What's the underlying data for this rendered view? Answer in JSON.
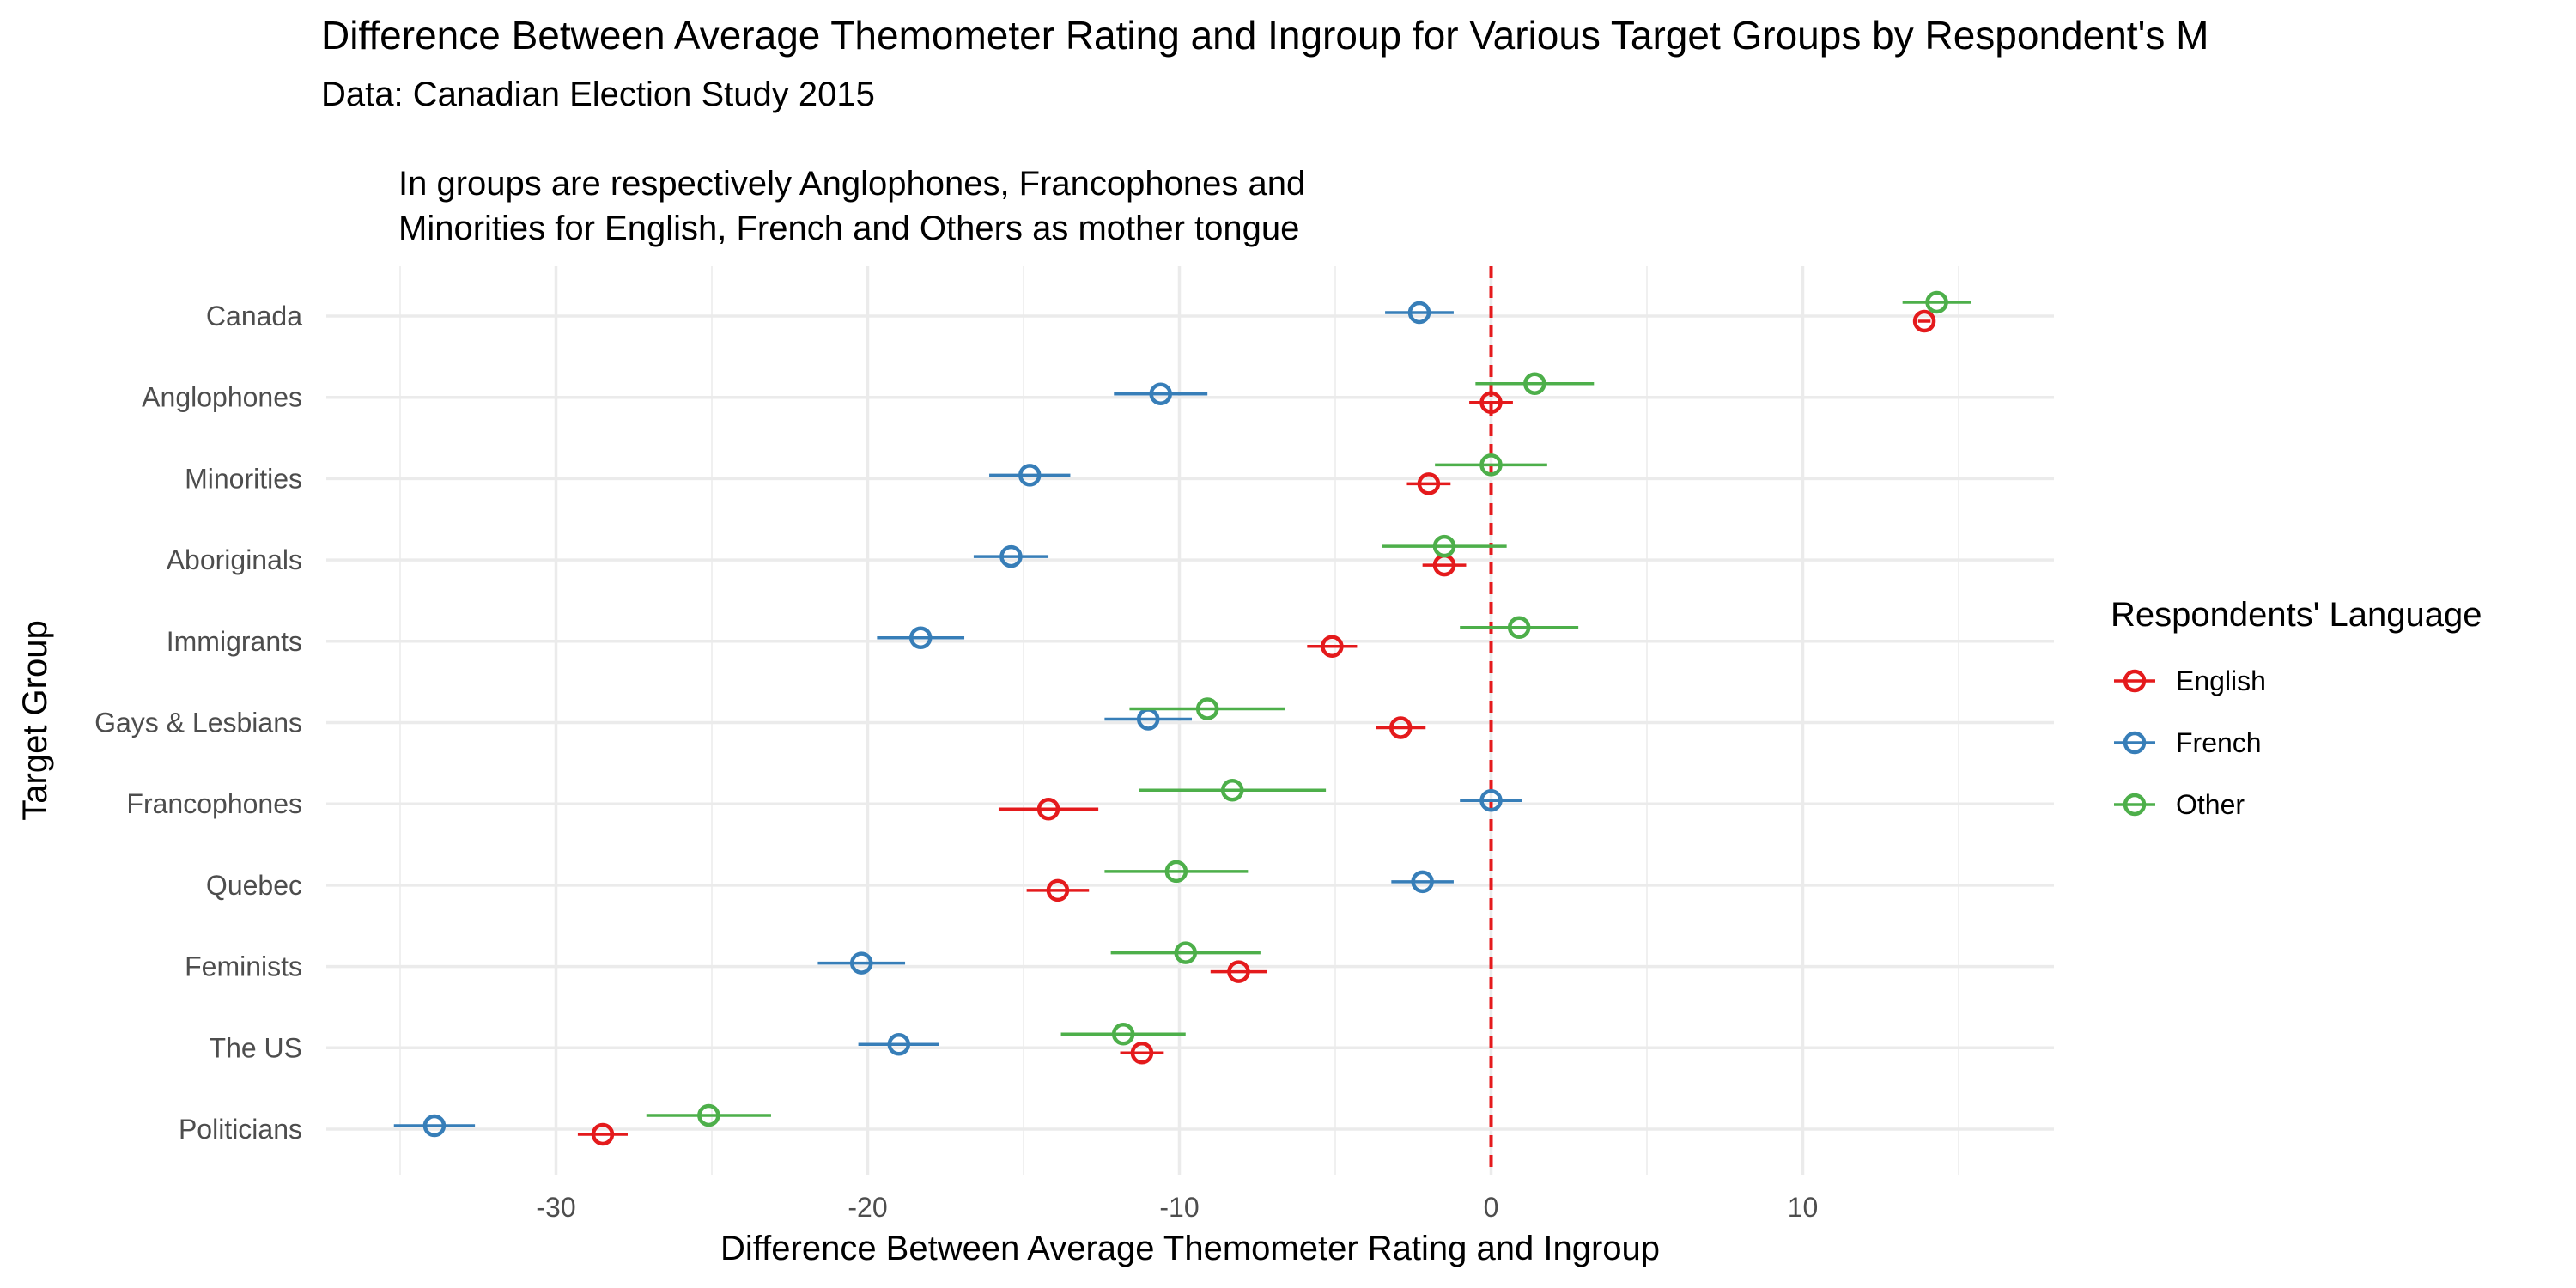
{
  "chart_data": {
    "type": "scatter",
    "title": "Difference Between Average Themometer Rating and Ingroup for Various Target Groups by Respondent's M",
    "subtitle": "Data: Canadian Election Study 2015",
    "annotation": [
      "In groups are respectively Anglophones, Francophones and",
      "Minorities for English, French and Others as mother tongue"
    ],
    "xlabel": "Difference Between Average Themometer Rating and Ingroup",
    "ylabel": "Target Group",
    "xlim": [
      -37,
      18
    ],
    "x_ticks": [
      -30,
      -20,
      -10,
      0,
      10
    ],
    "x_tick_labels": [
      "-30",
      "-20",
      "-10",
      "0",
      "10"
    ],
    "reference_line": 0,
    "categories": [
      "Canada",
      "Anglophones",
      "Minorities",
      "Aboriginals",
      "Immigrants",
      "Gays & Lesbians",
      "Francophones",
      "Quebec",
      "Feminists",
      "The US",
      "Politicians"
    ],
    "legend": {
      "title": "Respondents' Language",
      "position": "right"
    },
    "grid": true,
    "series": [
      {
        "name": "English",
        "color": "#e41a1c",
        "values": [
          13.9,
          0.0,
          -2.0,
          -1.5,
          -5.1,
          -2.9,
          -14.2,
          -13.9,
          -8.1,
          -11.2,
          -28.5
        ],
        "lower": [
          13.7,
          -0.7,
          -2.7,
          -2.2,
          -5.9,
          -3.7,
          -15.8,
          -14.9,
          -9.0,
          -11.9,
          -29.3
        ],
        "upper": [
          14.1,
          0.7,
          -1.3,
          -0.8,
          -4.3,
          -2.1,
          -12.6,
          -12.9,
          -7.2,
          -10.5,
          -27.7
        ]
      },
      {
        "name": "French",
        "color": "#377eb8",
        "values": [
          -2.3,
          -10.6,
          -14.8,
          -15.4,
          -18.3,
          -11.0,
          0.0,
          -2.2,
          -20.2,
          -19.0,
          -33.9
        ],
        "lower": [
          -3.4,
          -12.1,
          -16.1,
          -16.6,
          -19.7,
          -12.4,
          -1.0,
          -3.2,
          -21.6,
          -20.3,
          -35.2
        ],
        "upper": [
          -1.2,
          -9.1,
          -13.5,
          -14.2,
          -16.9,
          -9.6,
          1.0,
          -1.2,
          -18.8,
          -17.7,
          -32.6
        ]
      },
      {
        "name": "Other",
        "color": "#4daf4a",
        "values": [
          14.3,
          1.4,
          0.0,
          -1.5,
          0.9,
          -9.1,
          -8.3,
          -10.1,
          -9.8,
          -11.8,
          -25.1
        ],
        "lower": [
          13.2,
          -0.5,
          -1.8,
          -3.5,
          -1.0,
          -11.6,
          -11.3,
          -12.4,
          -12.2,
          -13.8,
          -27.1
        ],
        "upper": [
          15.4,
          3.3,
          1.8,
          0.5,
          2.8,
          -6.6,
          -5.3,
          -7.8,
          -7.4,
          -9.8,
          -23.1
        ]
      }
    ]
  }
}
